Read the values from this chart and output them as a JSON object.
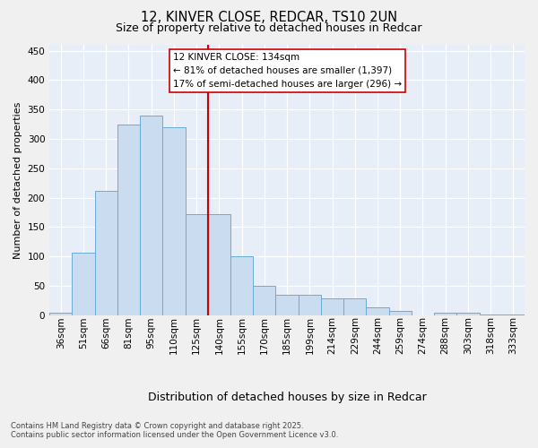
{
  "title_line1": "12, KINVER CLOSE, REDCAR, TS10 2UN",
  "title_line2": "Size of property relative to detached houses in Redcar",
  "xlabel": "Distribution of detached houses by size in Redcar",
  "ylabel": "Number of detached properties",
  "categories": [
    "36sqm",
    "51sqm",
    "66sqm",
    "81sqm",
    "95sqm",
    "110sqm",
    "125sqm",
    "140sqm",
    "155sqm",
    "170sqm",
    "185sqm",
    "199sqm",
    "214sqm",
    "229sqm",
    "244sqm",
    "259sqm",
    "274sqm",
    "288sqm",
    "303sqm",
    "318sqm",
    "333sqm"
  ],
  "values": [
    5,
    107,
    212,
    325,
    340,
    320,
    172,
    172,
    100,
    50,
    35,
    35,
    28,
    28,
    14,
    8,
    0,
    5,
    5,
    1,
    1
  ],
  "bar_color": "#c9dcf0",
  "bar_edge_color": "#6aabd4",
  "vline_color": "#cc0000",
  "vline_x_index": 7,
  "annotation_text": "12 KINVER CLOSE: 134sqm\n← 81% of detached houses are smaller (1,397)\n17% of semi-detached houses are larger (296) →",
  "annotation_box_color": "white",
  "annotation_box_edge": "#cc0000",
  "ylim": [
    0,
    460
  ],
  "yticks": [
    0,
    50,
    100,
    150,
    200,
    250,
    300,
    350,
    400,
    450
  ],
  "axes_bg_color": "#e8eef8",
  "fig_bg_color": "#f0f0f0",
  "footnote": "Contains HM Land Registry data © Crown copyright and database right 2025.\nContains public sector information licensed under the Open Government Licence v3.0.",
  "title_fontsize": 10.5,
  "subtitle_fontsize": 9,
  "ylabel_fontsize": 8,
  "xlabel_fontsize": 9,
  "tick_fontsize": 7.5,
  "annotation_fontsize": 7.5,
  "footnote_fontsize": 6
}
